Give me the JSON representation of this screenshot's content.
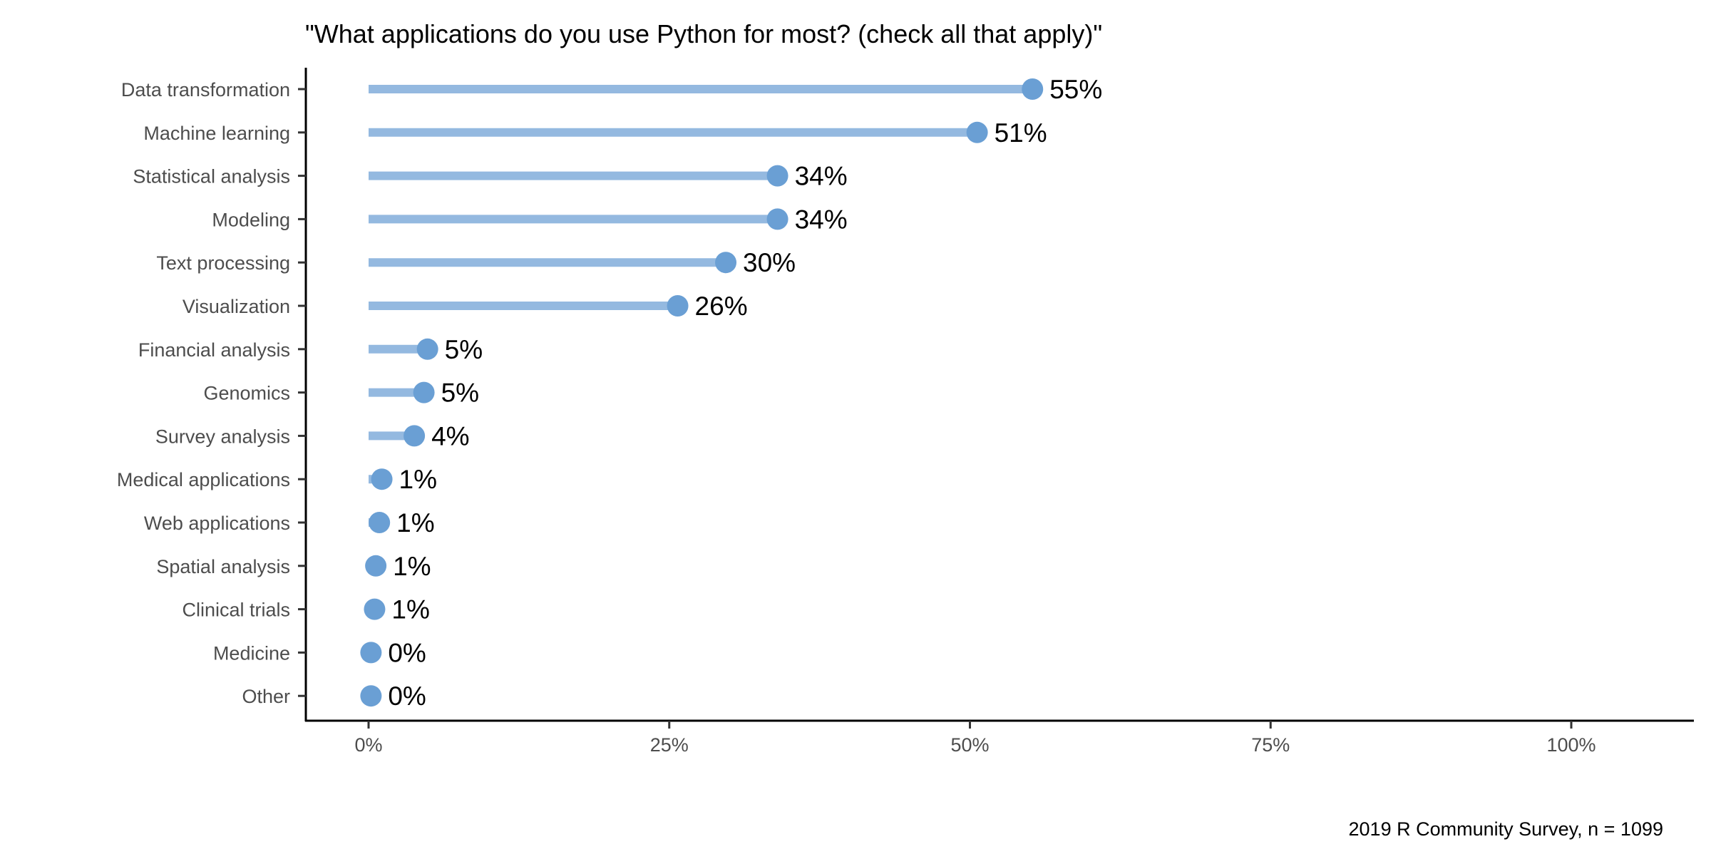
{
  "chart_data": {
    "type": "lollipop",
    "title": "\"What applications do you use Python for most? (check all that apply)\"",
    "caption": "2019 R Community Survey, n = 1099",
    "xlabel": "",
    "ylabel": "",
    "xlim": [
      0,
      100
    ],
    "x_ticks": [
      "0%",
      "25%",
      "50%",
      "75%",
      "100%"
    ],
    "x_tick_values": [
      0,
      25,
      50,
      75,
      100
    ],
    "grid": false,
    "colors": {
      "segment": "#94b9e0",
      "point": "#6a9fd4",
      "text": "#000000",
      "tick_label": "#4d4d4d"
    },
    "categories": [
      "Data transformation",
      "Machine learning",
      "Statistical analysis",
      "Modeling",
      "Text processing",
      "Visualization",
      "Financial analysis",
      "Genomics",
      "Survey analysis",
      "Medical applications",
      "Web applications",
      "Spatial analysis",
      "Clinical trials",
      "Medicine",
      "Other"
    ],
    "values": [
      55.2,
      50.6,
      34.0,
      34.0,
      29.7,
      25.7,
      4.9,
      4.6,
      3.8,
      1.1,
      0.9,
      0.6,
      0.5,
      0.2,
      0.2
    ],
    "labels": [
      "55%",
      "51%",
      "34%",
      "34%",
      "30%",
      "26%",
      "5%",
      "5%",
      "4%",
      "1%",
      "1%",
      "1%",
      "1%",
      "0%",
      "0%"
    ]
  }
}
